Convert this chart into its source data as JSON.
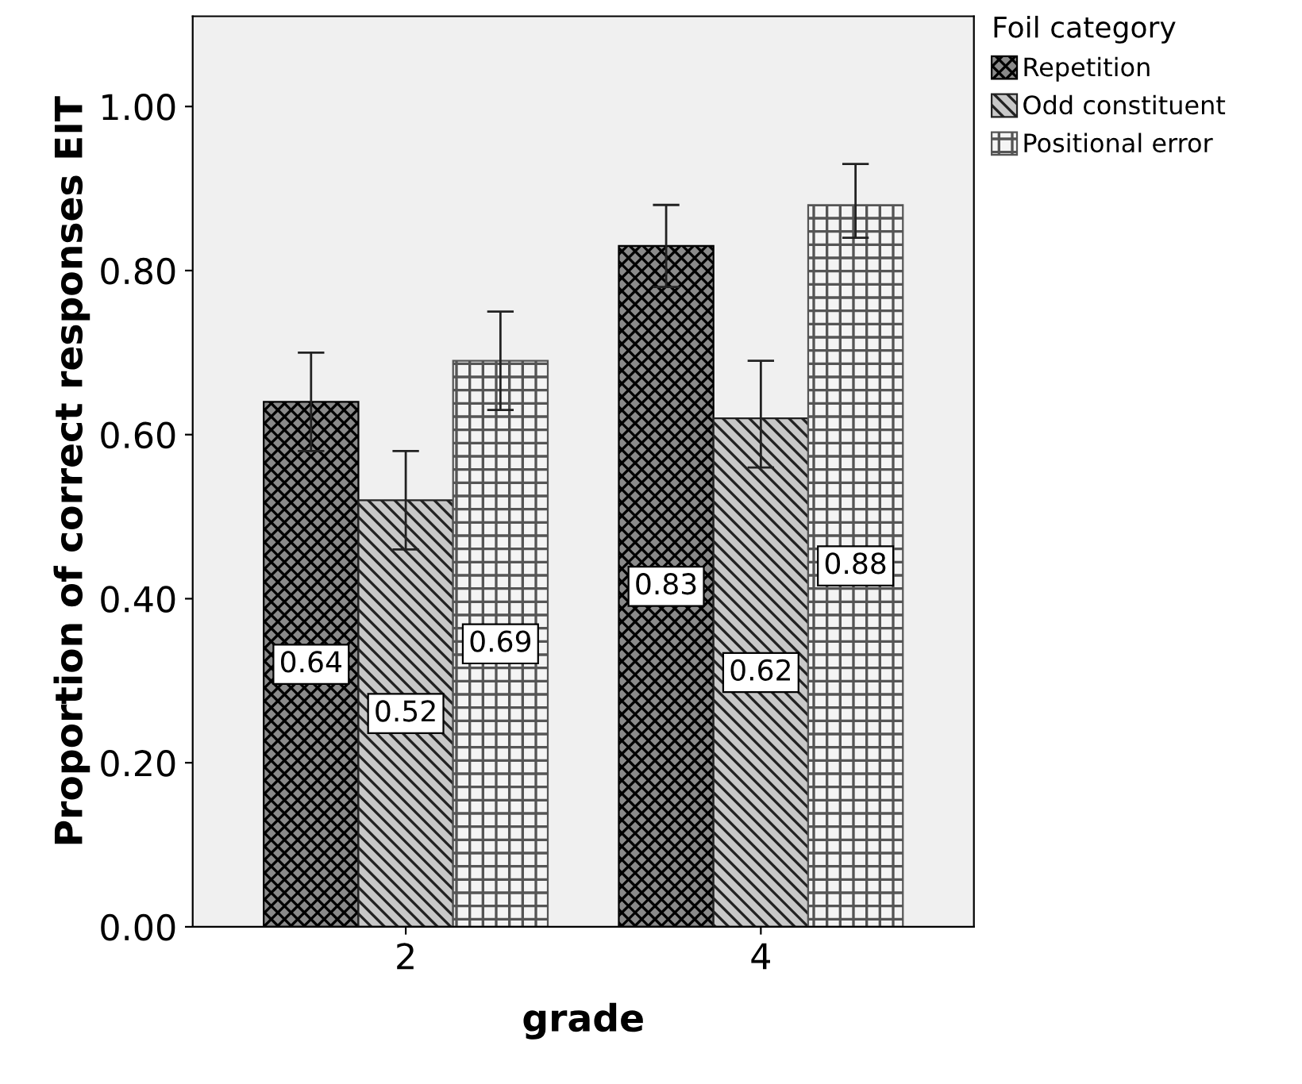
{
  "chart_data": {
    "type": "bar",
    "xlabel": "grade",
    "ylabel": "Proportion of correct responses EIT",
    "legend_title": "Foil category",
    "categories": [
      "2",
      "4"
    ],
    "series": [
      {
        "name": "Repetition",
        "color": "#000000",
        "values": [
          0.64,
          0.83
        ],
        "errors": [
          [
            0.58,
            0.7
          ],
          [
            0.78,
            0.88
          ]
        ]
      },
      {
        "name": "Odd constituent",
        "color": "#222222",
        "values": [
          0.52,
          0.62
        ],
        "errors": [
          [
            0.46,
            0.58
          ],
          [
            0.56,
            0.69
          ]
        ]
      },
      {
        "name": "Positional error",
        "color": "#555555",
        "values": [
          0.69,
          0.88
        ],
        "errors": [
          [
            0.63,
            0.75
          ],
          [
            0.84,
            0.93
          ]
        ]
      }
    ],
    "ylim": [
      0,
      1.11
    ],
    "yticks": [
      {
        "value": 0,
        "label": "0.00"
      },
      {
        "value": 0.2,
        "label": "0.20"
      },
      {
        "value": 0.4,
        "label": "0.40"
      },
      {
        "value": 0.6,
        "label": "0.60"
      },
      {
        "value": 0.8,
        "label": "0.80"
      },
      {
        "value": 1.0,
        "label": "1.00"
      }
    ],
    "data_labels": true,
    "grid": false,
    "legend": "top right"
  }
}
